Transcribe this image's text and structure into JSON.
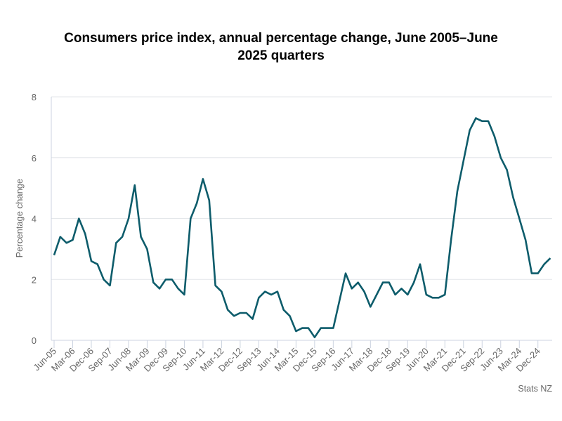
{
  "chart_data": {
    "type": "line",
    "title_line1": "Consumers price index, annual percentage change, June 2005–June",
    "title_line2": "2025 quarters",
    "xlabel": "",
    "ylabel": "Percentage change",
    "ylim": [
      0,
      8
    ],
    "yticks": [
      0,
      2,
      4,
      6,
      8
    ],
    "grid": true,
    "line_color": "#0d5c6b",
    "credit": "Stats NZ",
    "xtick_labels": [
      "Jun-05",
      "Mar-06",
      "Dec-06",
      "Sep-07",
      "Jun-08",
      "Mar-09",
      "Dec-09",
      "Sep-10",
      "Jun-11",
      "Mar-12",
      "Dec-12",
      "Sep-13",
      "Jun-14",
      "Mar-15",
      "Dec-15",
      "Sep-16",
      "Jun-17",
      "Mar-18",
      "Dec-18",
      "Sep-19",
      "Jun-20",
      "Mar-21",
      "Dec-21",
      "Sep-22",
      "Jun-23",
      "Mar-24",
      "Dec-24"
    ],
    "series": [
      {
        "values": [
          2.8,
          3.4,
          3.2,
          3.3,
          4.0,
          3.5,
          2.6,
          2.5,
          2.0,
          1.8,
          3.2,
          3.4,
          4.0,
          5.1,
          3.4,
          3.0,
          1.9,
          1.7,
          2.0,
          2.0,
          1.7,
          1.5,
          4.0,
          4.5,
          5.3,
          4.6,
          1.8,
          1.6,
          1.0,
          0.8,
          0.9,
          0.9,
          0.7,
          1.4,
          1.6,
          1.5,
          1.6,
          1.0,
          0.8,
          0.3,
          0.4,
          0.4,
          0.1,
          0.4,
          0.4,
          0.4,
          1.3,
          2.2,
          1.7,
          1.9,
          1.6,
          1.1,
          1.5,
          1.9,
          1.9,
          1.5,
          1.7,
          1.5,
          1.9,
          2.5,
          1.5,
          1.4,
          1.4,
          1.5,
          3.3,
          4.9,
          5.9,
          6.9,
          7.3,
          7.2,
          7.2,
          6.7,
          6.0,
          5.6,
          4.7,
          4.0,
          3.3,
          2.2,
          2.2,
          2.5,
          2.7
        ]
      }
    ]
  }
}
